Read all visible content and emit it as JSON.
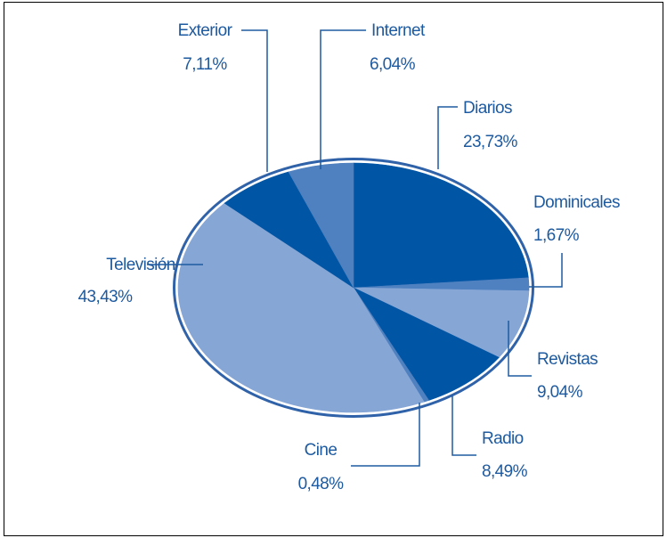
{
  "chart_data": {
    "type": "pie",
    "title": "",
    "slices": [
      {
        "label": "Diarios",
        "value": 23.73,
        "display": "23,73%",
        "color": "#0055a4"
      },
      {
        "label": "Dominicales",
        "value": 1.67,
        "display": "1,67%",
        "color": "#4f80bf"
      },
      {
        "label": "Revistas",
        "value": 9.04,
        "display": "9,04%",
        "color": "#86a6d6"
      },
      {
        "label": "Radio",
        "value": 8.49,
        "display": "8,49%",
        "color": "#0055a4"
      },
      {
        "label": "Cine",
        "value": 0.48,
        "display": "0,48%",
        "color": "#4f80bf"
      },
      {
        "label": "Televisión",
        "value": 43.43,
        "display": "43,43%",
        "color": "#86a6d6"
      },
      {
        "label": "Exterior",
        "value": 7.11,
        "display": "7,11%",
        "color": "#0055a4"
      },
      {
        "label": "Internet",
        "value": 6.04,
        "display": "6,04%",
        "color": "#4f80bf"
      }
    ],
    "text_color": "#1e5aa0"
  }
}
